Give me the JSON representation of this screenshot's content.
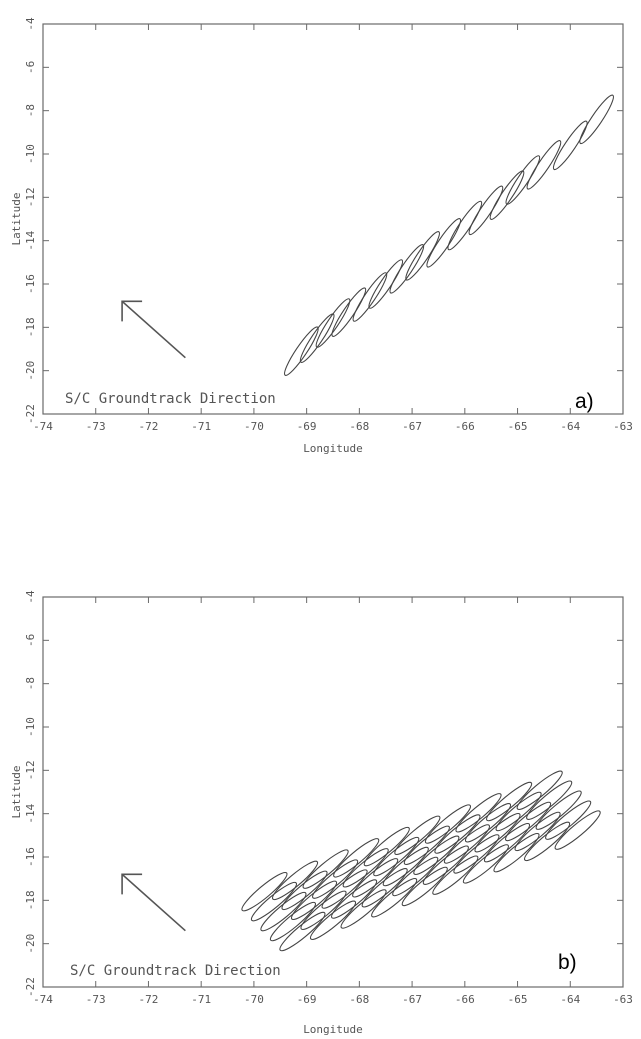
{
  "chart_data": [
    {
      "type": "scatter",
      "panel_label": "a)",
      "xlabel": "Longitude",
      "ylabel": "Latitude",
      "xlim": [
        -74,
        -63
      ],
      "ylim": [
        -22,
        -4
      ],
      "xticks": [
        "-74",
        "-73",
        "-72",
        "-71",
        "-70",
        "-69",
        "-68",
        "-67",
        "-66",
        "-65",
        "-64",
        "-63"
      ],
      "yticks": [
        "-4",
        "-6",
        "-8",
        "-10",
        "-12",
        "-14",
        "-16",
        "-18",
        "-20",
        "-22"
      ],
      "annotation": "S/C Groundtrack Direction",
      "arrow": {
        "from": [
          -71.3,
          -19.4
        ],
        "to": [
          -72.5,
          -16.8
        ]
      },
      "footprint_shape": "ellipse",
      "footprint_length_deg": 1.1,
      "footprint_width_deg": 0.2,
      "footprint_angle_deg": 56,
      "series": [
        {
          "points": [
            [
              -69.1,
              -19.1
            ],
            [
              -68.8,
              -18.5
            ],
            [
              -68.5,
              -17.8
            ],
            [
              -68.2,
              -17.3
            ],
            [
              -67.8,
              -16.6
            ],
            [
              -67.5,
              -16.0
            ],
            [
              -67.1,
              -15.3
            ],
            [
              -66.8,
              -14.7
            ],
            [
              -66.4,
              -14.1
            ],
            [
              -66.0,
              -13.3
            ],
            [
              -65.6,
              -12.6
            ],
            [
              -65.2,
              -11.9
            ],
            [
              -64.9,
              -11.2
            ],
            [
              -64.5,
              -10.5
            ],
            [
              -64.0,
              -9.6
            ],
            [
              -63.5,
              -8.4
            ]
          ]
        }
      ]
    },
    {
      "type": "scatter",
      "panel_label": "b)",
      "xlabel": "Longitude",
      "ylabel": "Latitude",
      "xlim": [
        -74,
        -63
      ],
      "ylim": [
        -22,
        -4
      ],
      "xticks": [
        "-74",
        "-73",
        "-72",
        "-71",
        "-70",
        "-69",
        "-68",
        "-67",
        "-66",
        "-65",
        "-64",
        "-63"
      ],
      "yticks": [
        "-4",
        "-6",
        "-8",
        "-10",
        "-12",
        "-14",
        "-16",
        "-18",
        "-20",
        "-22"
      ],
      "annotation": "S/C Groundtrack Direction",
      "arrow": {
        "from": [
          -71.3,
          -19.4
        ],
        "to": [
          -72.5,
          -16.8
        ]
      },
      "footprint_shape": "ellipse",
      "footprint_length_deg": 1.1,
      "footprint_width_deg": 0.22,
      "footprint_angle_deg": 40,
      "swath": {
        "track_count": 5,
        "footprints_per_track": 10,
        "track_start": [
          -69.8,
          -17.6
        ],
        "along_track_step": [
          0.58,
          0.52
        ],
        "cross_track_step": [
          0.18,
          -0.46
        ]
      }
    }
  ]
}
